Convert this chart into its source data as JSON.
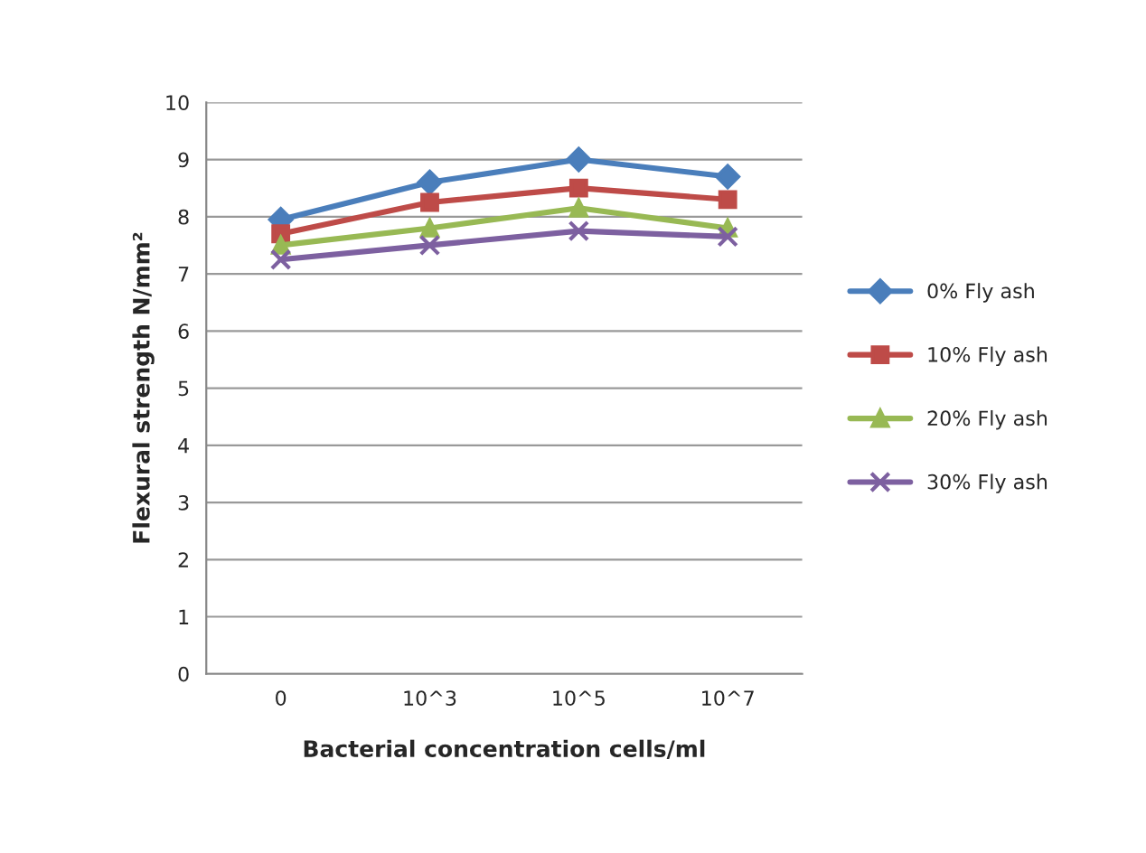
{
  "chart_data": {
    "type": "line",
    "xlabel": "Bacterial concentration cells/ml",
    "ylabel": "Flexural strength N/mm²",
    "categories": [
      "0",
      "10^3",
      "10^5",
      "10^7"
    ],
    "series": [
      {
        "name": "0% Fly ash",
        "color": "#4a7ebb",
        "values": [
          7.95,
          8.6,
          9.0,
          8.7
        ],
        "marker": "diamond"
      },
      {
        "name": "10% Fly ash",
        "color": "#be4b48",
        "values": [
          7.7,
          8.25,
          8.5,
          8.3
        ],
        "marker": "square"
      },
      {
        "name": "20% Fly ash",
        "color": "#98b954",
        "values": [
          7.5,
          7.8,
          8.15,
          7.8
        ],
        "marker": "triangle"
      },
      {
        "name": "30% Fly ash",
        "color": "#7d60a0",
        "values": [
          7.25,
          7.5,
          7.75,
          7.65
        ],
        "marker": "cross"
      }
    ],
    "ylim": [
      0,
      10
    ],
    "yticks": [
      0,
      1,
      2,
      3,
      4,
      5,
      6,
      7,
      8,
      9,
      10
    ],
    "grid": "y",
    "legend": "right",
    "line_style": "solid"
  }
}
